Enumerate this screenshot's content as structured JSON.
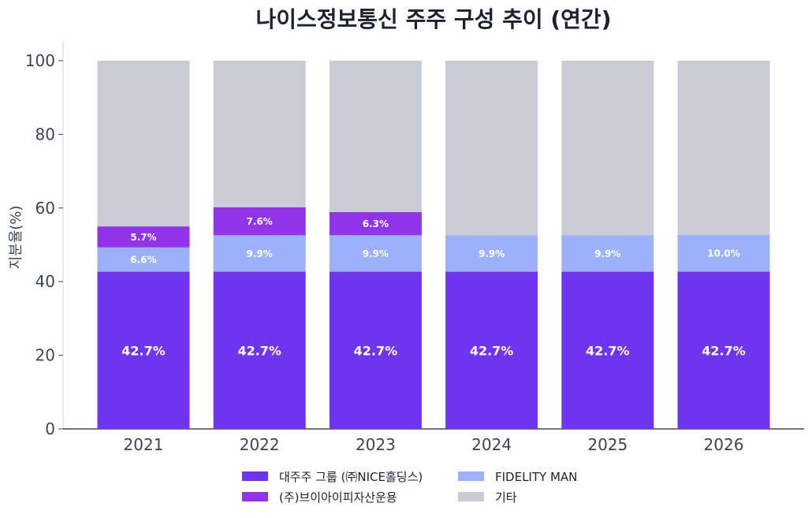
{
  "chart_data": {
    "type": "bar",
    "stacked": true,
    "title": "나이스정보통신 주주 구성 추이 (연간)",
    "xlabel": "",
    "ylabel": "지분율(%)",
    "ylim": [
      0,
      100
    ],
    "yticks": [
      0,
      20,
      40,
      60,
      80,
      100
    ],
    "categories": [
      "2021",
      "2022",
      "2023",
      "2024",
      "2025",
      "2026"
    ],
    "series": [
      {
        "name": "대주주 그룹 (㈜NICE홀딩스)",
        "color": "#6f34f0",
        "values": [
          42.7,
          42.7,
          42.7,
          42.7,
          42.7,
          42.7
        ],
        "labels": [
          "42.7%",
          "42.7%",
          "42.7%",
          "42.7%",
          "42.7%",
          "42.7%"
        ]
      },
      {
        "name": "FIDELITY MAN",
        "color": "#9bb1fb",
        "values": [
          6.6,
          9.9,
          9.9,
          9.9,
          9.9,
          10.0
        ],
        "labels": [
          "6.6%",
          "9.9%",
          "9.9%",
          "9.9%",
          "9.9%",
          "10.0%"
        ]
      },
      {
        "name": "(주)브이아이피자산운용",
        "color": "#9133e8",
        "values": [
          5.7,
          7.6,
          6.3,
          0,
          0,
          0
        ],
        "labels": [
          "5.7%",
          "7.6%",
          "6.3%",
          "",
          "",
          ""
        ]
      },
      {
        "name": "기타",
        "color": "#c9ccd5",
        "values": [
          45.0,
          39.8,
          41.1,
          47.4,
          47.4,
          47.3
        ],
        "labels": [
          "",
          "",
          "",
          "",
          "",
          ""
        ]
      }
    ],
    "legend_position": "bottom",
    "legend_order": [
      0,
      2,
      1,
      3
    ],
    "grid": false
  }
}
